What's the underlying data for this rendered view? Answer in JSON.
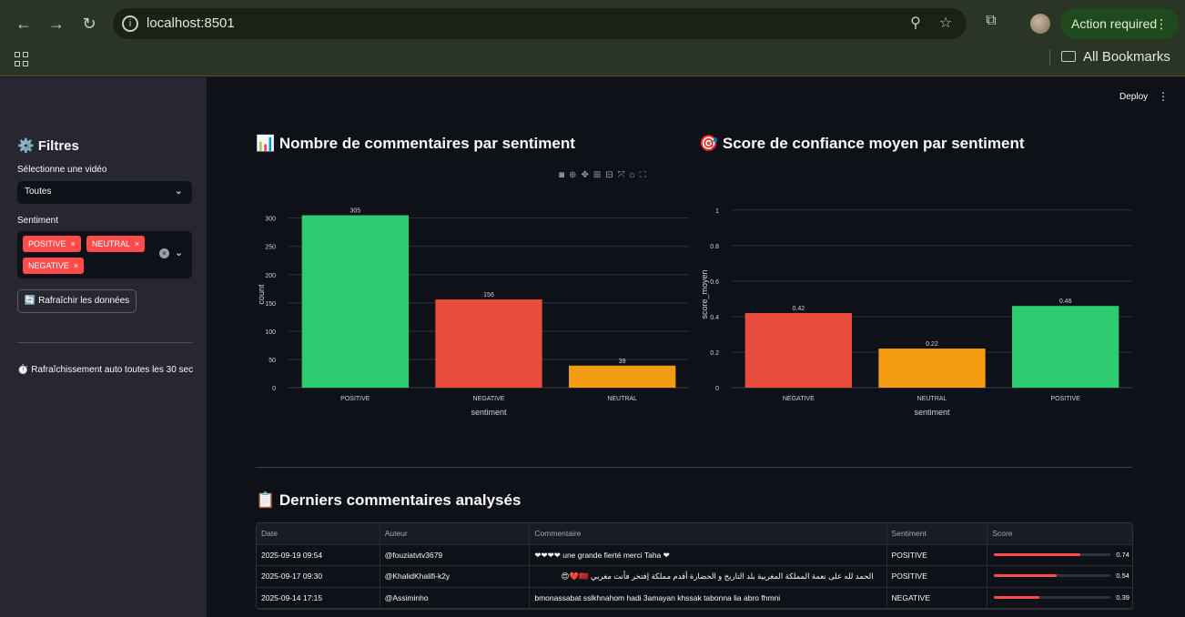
{
  "browser": {
    "url": "localhost:8501",
    "action_required": "Action required",
    "bookmarks_label": "All Bookmarks"
  },
  "sidebar": {
    "title": "⚙️ Filtres",
    "video_label": "Sélectionne une vidéo",
    "video_value": "Toutes",
    "sentiment_label": "Sentiment",
    "sentiment_tags": [
      "POSITIVE",
      "NEUTRAL",
      "NEGATIVE"
    ],
    "refresh_button": "🔄 Rafraîchir les données",
    "auto_refresh_note": "⏱️ Rafraîchissement auto toutes les 30 sec"
  },
  "header": {
    "deploy": "Deploy"
  },
  "charts": {
    "count_title": "📊 Nombre de commentaires par sentiment",
    "score_title": "🎯 Score de confiance moyen par sentiment"
  },
  "chart_data": [
    {
      "type": "bar",
      "categories": [
        "POSITIVE",
        "NEGATIVE",
        "NEUTRAL"
      ],
      "values": [
        305,
        156,
        39
      ],
      "colors": [
        "#2ecc71",
        "#e74c3c",
        "#f39c12"
      ],
      "xlabel": "sentiment",
      "ylabel": "count",
      "ylim": [
        0,
        330
      ],
      "yticks": [
        0,
        50,
        100,
        150,
        200,
        250,
        300
      ],
      "grid": true
    },
    {
      "type": "bar",
      "categories": [
        "NEGATIVE",
        "NEUTRAL",
        "POSITIVE"
      ],
      "values": [
        0.42,
        0.22,
        0.46
      ],
      "colors": [
        "#e74c3c",
        "#f39c12",
        "#2ecc71"
      ],
      "xlabel": "sentiment",
      "ylabel": "score_moyen",
      "ylim": [
        0,
        1.05
      ],
      "yticks": [
        0,
        0.2,
        0.4,
        0.6,
        0.8,
        1
      ],
      "grid": true
    }
  ],
  "table": {
    "title": "📋 Derniers commentaires analysés",
    "columns": [
      "Date",
      "Auteur",
      "Commentaire",
      "Sentiment",
      "Score"
    ],
    "rows": [
      {
        "date": "2025-09-19 09:54",
        "author": "@fouziatvtv3679",
        "comment": "❤❤❤❤ une grande fierté merci Taha ❤",
        "sentiment": "POSITIVE",
        "score": 0.74,
        "rtl": false
      },
      {
        "date": "2025-09-17 09:30",
        "author": "@KhalidKhalifi-k2y",
        "comment": "الحمد لله على نعمة المملكة المغربية بلد التاريخ و الحضارة أقدم مملكة إفتخر فأنت مغربي 🇲🇦❤️😍",
        "sentiment": "POSITIVE",
        "score": 0.54,
        "rtl": true
      },
      {
        "date": "2025-09-14 17:15",
        "author": "@Assiminho",
        "comment": "bmonassabat sslkhnahom hadi 3amayan khssak tabonna lia abro fhmni",
        "sentiment": "NEGATIVE",
        "score": 0.39,
        "rtl": false
      }
    ]
  }
}
